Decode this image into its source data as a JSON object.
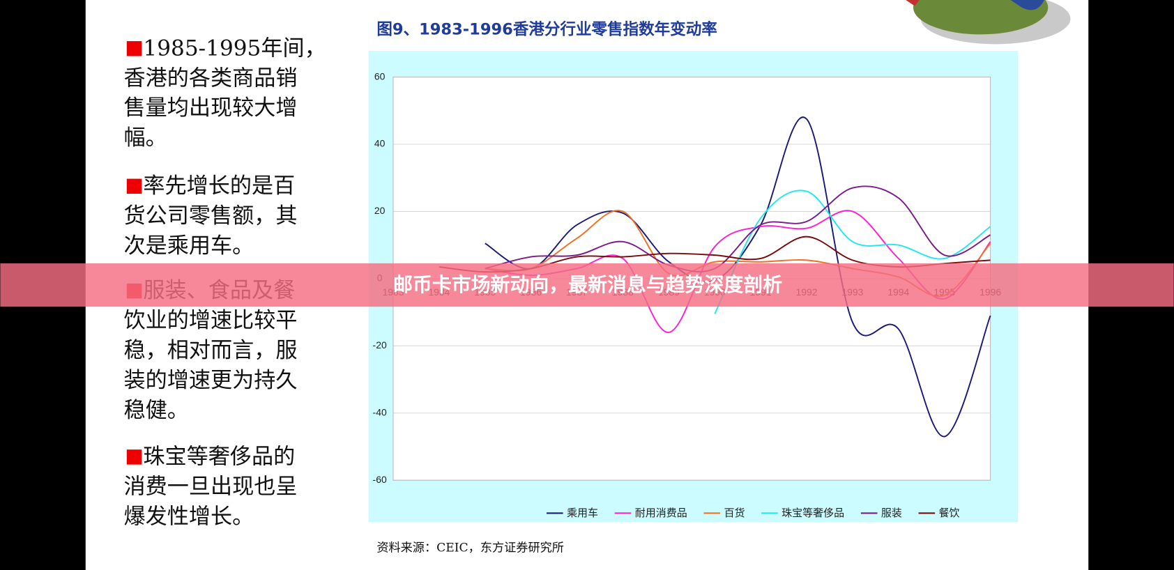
{
  "slide": {
    "paragraphs": [
      [
        "1985-1995年间，",
        "香港的各类商品销",
        "售量均出现较大增",
        "幅。"
      ],
      [
        "率先增长的是百",
        "货公司零售额，其",
        "次是乘用车。"
      ],
      [
        "服装、食品及餐",
        "饮业的增速比较平",
        "稳，相对而言，服",
        "装的增速更为持久",
        "稳健。"
      ],
      [
        "珠宝等奢侈品的",
        "消费一旦出现也呈",
        "爆发性增长。"
      ]
    ],
    "source": "资料来源：CEIC，东方证券研究所",
    "banner": "邮币卡市场新动向，最新消息与趋势深度剖析"
  },
  "chart_data": {
    "type": "line",
    "title": "图9、1983-1996香港分行业零售指数年变动率",
    "categories": [
      "1983",
      "1984",
      "1985",
      "1986",
      "1987",
      "1988",
      "1989",
      "1990",
      "1991",
      "1992",
      "1993",
      "1994",
      "1995",
      "1996"
    ],
    "series": [
      {
        "name": "乘用车",
        "color": "#1a1a7a",
        "values": [
          null,
          null,
          10.5,
          3,
          16,
          19.5,
          5,
          -0.5,
          16,
          47.5,
          -13,
          -15,
          -47,
          -11
        ]
      },
      {
        "name": "耐用消费品",
        "color": "#ff1fd2",
        "values": [
          null,
          null,
          3,
          1,
          3,
          6,
          -16,
          9.5,
          15.5,
          15,
          20,
          6,
          -6,
          11
        ]
      },
      {
        "name": "百货",
        "color": "#f07020",
        "values": [
          null,
          null,
          3,
          3,
          12,
          20,
          1.5,
          5,
          5,
          5.5,
          3,
          0.5,
          -5,
          10.5
        ]
      },
      {
        "name": "珠宝等奢侈品",
        "color": "#22e6f0",
        "values": [
          null,
          null,
          null,
          null,
          null,
          null,
          null,
          -10.5,
          18,
          26,
          11,
          10,
          6,
          15.5
        ]
      },
      {
        "name": "服装",
        "color": "#7a1a8a",
        "values": [
          null,
          null,
          3,
          6.5,
          7,
          11,
          4,
          3,
          16,
          17,
          27,
          24,
          7,
          13
        ]
      },
      {
        "name": "餐饮",
        "color": "#7a0a0a",
        "values": [
          null,
          3.5,
          2,
          3,
          6.5,
          6.5,
          7.5,
          7,
          6,
          12.5,
          5.5,
          3.5,
          4.5,
          5.5
        ]
      }
    ],
    "ylim": [
      -60,
      60
    ],
    "yticks": [
      -60,
      -40,
      -20,
      0,
      20,
      40,
      60
    ],
    "grid": true,
    "legend": "bottom"
  }
}
